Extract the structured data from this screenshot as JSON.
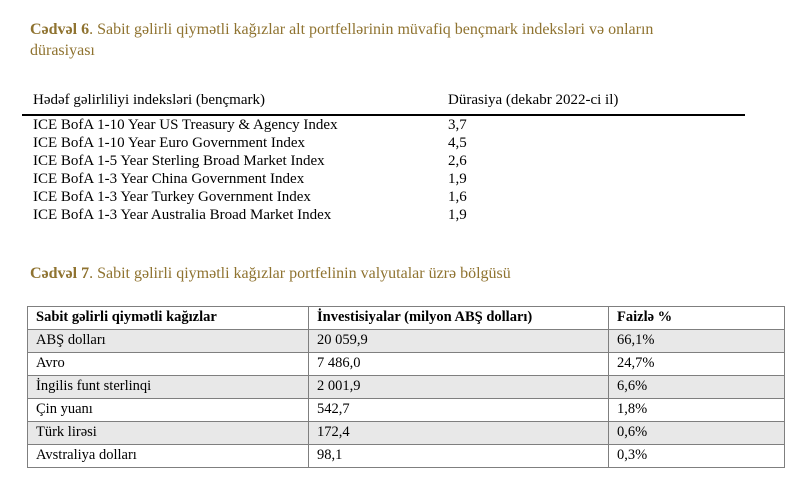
{
  "colors": {
    "caption_accent": "#8f7330",
    "row_shade": "#e8e8e8",
    "table_grid": "#7f7f7f",
    "header_rule": "#000000",
    "background": "#ffffff"
  },
  "table6": {
    "caption": {
      "bold": "Cədvəl 6",
      "rest_line1": ". Sabit gəlirli qiymətli kağızlar alt portfellərinin müvafiq bençmark indeksləri və onların",
      "line2": "dürasiyası"
    },
    "columns": [
      "Hədəf gəlirliliyi indeksləri (bençmark)",
      "Dürasiya (dekabr 2022-ci il)"
    ],
    "rows": [
      {
        "index": "ICE BofA 1-10 Year US Treasury & Agency Index",
        "duration": "3,7"
      },
      {
        "index": "ICE BofA 1-10 Year Euro Government Index",
        "duration": "4,5"
      },
      {
        "index": "ICE BofA 1-5 Year Sterling Broad Market Index",
        "duration": "2,6"
      },
      {
        "index": "ICE BofA 1-3 Year China Government Index",
        "duration": "1,9"
      },
      {
        "index": "ICE BofA 1-3 Year Turkey Government Index",
        "duration": "1,6"
      },
      {
        "index": "ICE BofA 1-3 Year Australia Broad Market Index",
        "duration": "1,9"
      }
    ]
  },
  "table7": {
    "caption": {
      "bold": "Cədvəl 7",
      "rest": ". Sabit gəlirli qiymətli kağızlar portfelinin valyutalar üzrə bölgüsü"
    },
    "columns": [
      "Sabit gəlirli qiymətli kağızlar",
      "İnvestisiyalar (milyon ABŞ dolları)",
      "Faizlə %"
    ],
    "rows": [
      {
        "currency": "ABŞ dolları",
        "investment": "20 059,9",
        "percent": "66,1%"
      },
      {
        "currency": "Avro",
        "investment": "7 486,0",
        "percent": "24,7%"
      },
      {
        "currency": "İngilis funt sterlinqi",
        "investment": "2 001,9",
        "percent": "6,6%"
      },
      {
        "currency": "Çin yuanı",
        "investment": "542,7",
        "percent": "1,8%"
      },
      {
        "currency": "Türk lirəsi",
        "investment": "172,4",
        "percent": "0,6%"
      },
      {
        "currency": "Avstraliya dolları",
        "investment": "98,1",
        "percent": "0,3%"
      }
    ]
  }
}
